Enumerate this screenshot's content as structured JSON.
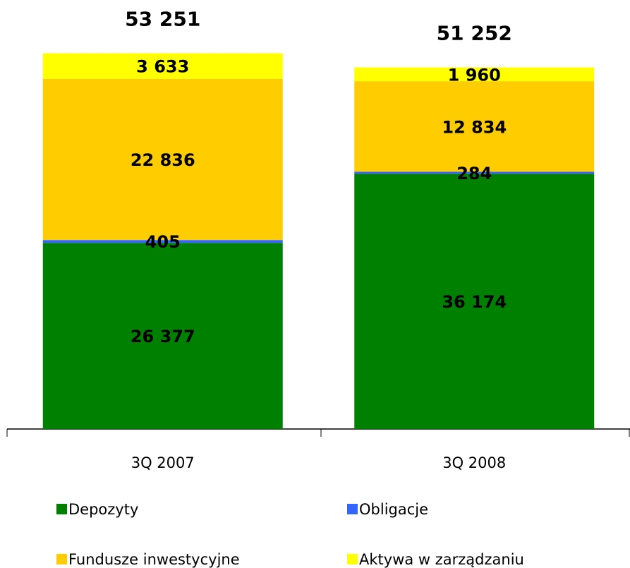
{
  "chart_data": {
    "type": "stacked_bar",
    "categories": [
      "3Q 2007",
      "3Q 2008"
    ],
    "series": [
      {
        "name": "Depozyty",
        "color": "#008000",
        "values": [
          26377,
          36174
        ],
        "value_labels": [
          "26 377",
          "36 174"
        ]
      },
      {
        "name": "Obligacje",
        "color": "#3366ff",
        "values": [
          405,
          284
        ],
        "value_labels": [
          "405",
          "284"
        ]
      },
      {
        "name": "Fundusze inwestycyjne",
        "color": "#ffcc00",
        "values": [
          22836,
          12834
        ],
        "value_labels": [
          "22 836",
          "12 834"
        ]
      },
      {
        "name": "Aktywa w zarządzaniu",
        "color": "#ffff00",
        "values": [
          3633,
          1960
        ],
        "value_labels": [
          "3 633",
          "1 960"
        ]
      }
    ],
    "totals": [
      53251,
      51252
    ],
    "total_labels": [
      "53 251",
      "51 252"
    ],
    "ylim": [
      0,
      60000
    ],
    "grid": false,
    "legend": "bottom"
  }
}
